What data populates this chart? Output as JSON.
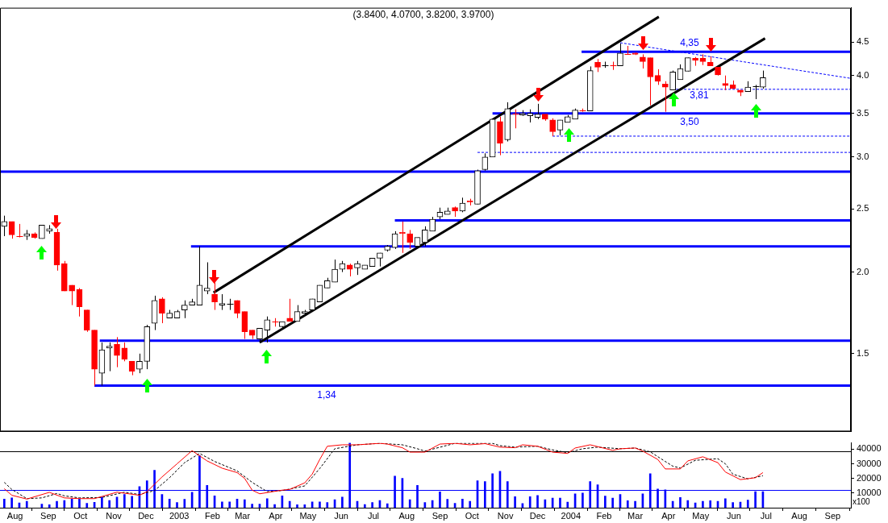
{
  "chart_data": [
    {
      "type": "candlestick",
      "title": "(3.8400, 4.0700, 3.8200, 3.9700)",
      "xlim": [
        "2002-07-18",
        "2004-09-18"
      ],
      "ylim": [
        1.14,
        5.08
      ],
      "log": "y",
      "yticks": [
        1.5,
        {
          "value": 2,
          "label": "2.0"
        },
        2.5,
        {
          "value": 3,
          "label": "3.0"
        },
        3.5,
        {
          "value": 4,
          "label": "4.0"
        },
        4.5
      ],
      "tick_labels": "y",
      "series": [
        {
          "type": "candlestick",
          "x": [
            "2002-07-22",
            "2002-07-29",
            "2002-08-05",
            "2002-08-12",
            "2002-08-19",
            "2002-08-26",
            "2002-09-02",
            "2002-09-09",
            "2002-09-16",
            "2002-09-23",
            "2002-09-30",
            "2002-10-07",
            "2002-10-14",
            "2002-10-21",
            "2002-10-28",
            "2002-11-04",
            "2002-11-11",
            "2002-11-18",
            "2002-11-25",
            "2002-12-02",
            "2002-12-09",
            "2002-12-16",
            "2002-12-23",
            "2002-12-30",
            "2003-01-06",
            "2003-01-13",
            "2003-01-20",
            "2003-01-27",
            "2003-02-03",
            "2003-02-10",
            "2003-02-17",
            "2003-02-24",
            "2003-03-03",
            "2003-03-10",
            "2003-03-17",
            "2003-03-24",
            "2003-03-31",
            "2003-04-07",
            "2003-04-14",
            "2003-04-21",
            "2003-04-28",
            "2003-05-05",
            "2003-05-12",
            "2003-05-19",
            "2003-05-26",
            "2003-06-02",
            "2003-06-09",
            "2003-06-16",
            "2003-06-23",
            "2003-06-30",
            "2003-07-07",
            "2003-07-14",
            "2003-07-21",
            "2003-07-28",
            "2003-08-04",
            "2003-08-11",
            "2003-08-18",
            "2003-08-25",
            "2003-09-01",
            "2003-09-08",
            "2003-09-15",
            "2003-09-22",
            "2003-09-29",
            "2003-10-06",
            "2003-10-13",
            "2003-10-20",
            "2003-10-27",
            "2003-11-03",
            "2003-11-10",
            "2003-11-17",
            "2003-11-24",
            "2003-12-01",
            "2003-12-08",
            "2003-12-15",
            "2003-12-22",
            "2003-12-29",
            "2004-01-05",
            "2004-01-12",
            "2004-01-19",
            "2004-01-26",
            "2004-02-02",
            "2004-02-09",
            "2004-02-16",
            "2004-02-23",
            "2004-03-01",
            "2004-03-08",
            "2004-03-15",
            "2004-03-22",
            "2004-03-29",
            "2004-04-05",
            "2004-04-12",
            "2004-04-19",
            "2004-04-26",
            "2004-05-03",
            "2004-05-10",
            "2004-05-17",
            "2004-05-24",
            "2004-05-31",
            "2004-06-07",
            "2004-06-14",
            "2004-06-21",
            "2004-06-28"
          ],
          "ohlc": [
            [
              2.35,
              2.44,
              2.27,
              2.39
            ],
            [
              2.39,
              2.39,
              2.25,
              2.28
            ],
            [
              2.27,
              2.37,
              2.26,
              2.27
            ],
            [
              2.27,
              2.32,
              2.24,
              2.29
            ],
            [
              2.29,
              2.3,
              2.25,
              2.26
            ],
            [
              2.25,
              2.36,
              2.25,
              2.36
            ],
            [
              2.31,
              2.36,
              2.29,
              2.33
            ],
            [
              2.3,
              2.33,
              2.01,
              2.05
            ],
            [
              2.06,
              2.08,
              1.87,
              1.87
            ],
            [
              1.91,
              1.91,
              1.78,
              1.87
            ],
            [
              1.88,
              1.89,
              1.71,
              1.77
            ],
            [
              1.75,
              1.75,
              1.62,
              1.63
            ],
            [
              1.63,
              1.63,
              1.34,
              1.42
            ],
            [
              1.4,
              1.56,
              1.34,
              1.52
            ],
            [
              1.53,
              1.56,
              1.41,
              1.54
            ],
            [
              1.55,
              1.59,
              1.43,
              1.49
            ],
            [
              1.53,
              1.56,
              1.46,
              1.47
            ],
            [
              1.46,
              1.46,
              1.39,
              1.41
            ],
            [
              1.42,
              1.5,
              1.4,
              1.46
            ],
            [
              1.46,
              1.66,
              1.42,
              1.65
            ],
            [
              1.67,
              1.84,
              1.63,
              1.81
            ],
            [
              1.82,
              1.83,
              1.67,
              1.73
            ],
            [
              1.7,
              1.75,
              1.7,
              1.73
            ],
            [
              1.7,
              1.75,
              1.7,
              1.74
            ],
            [
              1.75,
              1.81,
              1.7,
              1.78
            ],
            [
              1.78,
              1.82,
              1.78,
              1.8
            ],
            [
              1.78,
              2.19,
              1.78,
              1.91
            ],
            [
              1.87,
              2.07,
              1.85,
              1.89
            ],
            [
              1.85,
              1.93,
              1.75,
              1.8
            ],
            [
              1.78,
              1.85,
              1.75,
              1.79
            ],
            [
              1.79,
              1.82,
              1.75,
              1.79
            ],
            [
              1.81,
              1.81,
              1.7,
              1.73
            ],
            [
              1.74,
              1.74,
              1.58,
              1.62
            ],
            [
              1.63,
              1.63,
              1.58,
              1.6
            ],
            [
              1.58,
              1.64,
              1.56,
              1.64
            ],
            [
              1.63,
              1.71,
              1.56,
              1.69
            ],
            [
              1.68,
              1.7,
              1.65,
              1.68
            ],
            [
              1.65,
              1.68,
              1.64,
              1.68
            ],
            [
              1.7,
              1.82,
              1.68,
              1.68
            ],
            [
              1.68,
              1.78,
              1.68,
              1.74
            ],
            [
              1.73,
              1.75,
              1.72,
              1.74
            ],
            [
              1.75,
              1.82,
              1.75,
              1.82
            ],
            [
              1.8,
              1.91,
              1.8,
              1.91
            ],
            [
              1.89,
              1.96,
              1.89,
              1.94
            ],
            [
              1.93,
              2.09,
              1.93,
              2.02
            ],
            [
              2.02,
              2.08,
              2,
              2.06
            ],
            [
              2.05,
              2.06,
              1.97,
              2.02
            ],
            [
              2.03,
              2.08,
              1.98,
              2.06
            ],
            [
              2.02,
              2.05,
              2.02,
              2.05
            ],
            [
              2.04,
              2.1,
              2.04,
              2.1
            ],
            [
              2.1,
              2.14,
              2.04,
              2.14
            ],
            [
              2.16,
              2.2,
              2.15,
              2.19
            ],
            [
              2.18,
              2.31,
              2.17,
              2.29
            ],
            [
              2.3,
              2.39,
              2.14,
              2.29
            ],
            [
              2.29,
              2.32,
              2.17,
              2.22
            ],
            [
              2.19,
              2.26,
              2.19,
              2.26
            ],
            [
              2.22,
              2.35,
              2.19,
              2.32
            ],
            [
              2.31,
              2.43,
              2.31,
              2.41
            ],
            [
              2.43,
              2.51,
              2.41,
              2.47
            ],
            [
              2.45,
              2.51,
              2.45,
              2.48
            ],
            [
              2.51,
              2.52,
              2.43,
              2.48
            ],
            [
              2.48,
              2.6,
              2.47,
              2.55
            ],
            [
              2.57,
              2.59,
              2.53,
              2.56
            ],
            [
              2.54,
              2.87,
              2.54,
              2.86
            ],
            [
              2.87,
              3.04,
              2.86,
              3
            ],
            [
              3,
              3.43,
              3,
              3.43
            ],
            [
              3.4,
              3.46,
              3.02,
              3.15
            ],
            [
              3.19,
              3.64,
              3.17,
              3.56
            ],
            [
              3.5,
              3.55,
              3.32,
              3.5
            ],
            [
              3.48,
              3.54,
              3.47,
              3.5
            ],
            [
              3.47,
              3.55,
              3.39,
              3.5
            ],
            [
              3.45,
              3.62,
              3.43,
              3.49
            ],
            [
              3.49,
              3.49,
              3.41,
              3.43
            ],
            [
              3.42,
              3.44,
              3.23,
              3.28
            ],
            [
              3.3,
              3.42,
              3.24,
              3.42
            ],
            [
              3.39,
              3.48,
              3.39,
              3.46
            ],
            [
              3.43,
              3.56,
              3.43,
              3.54
            ],
            [
              3.54,
              3.56,
              3.52,
              3.54
            ],
            [
              3.53,
              4.13,
              3.53,
              4.07
            ],
            [
              4.19,
              4.24,
              4.05,
              4.12
            ],
            [
              4.15,
              4.2,
              4.11,
              4.15
            ],
            [
              4.15,
              4.2,
              4.08,
              4.15
            ],
            [
              4.14,
              4.48,
              4.14,
              4.33
            ],
            [
              4.31,
              4.44,
              4.31,
              4.31
            ],
            [
              4.33,
              4.34,
              4.3,
              4.31
            ],
            [
              4.27,
              4.31,
              4.1,
              4.2
            ],
            [
              4.26,
              4.26,
              3.6,
              3.98
            ],
            [
              4,
              4.09,
              3.87,
              3.92
            ],
            [
              3.88,
              3.92,
              3.52,
              3.84
            ],
            [
              3.8,
              4.07,
              3.8,
              4.05
            ],
            [
              3.94,
              4.16,
              3.94,
              4.1
            ],
            [
              4.06,
              4.26,
              4.06,
              4.26
            ],
            [
              4.25,
              4.27,
              4.14,
              4.22
            ],
            [
              4.25,
              4.31,
              4.15,
              4.2
            ],
            [
              4.19,
              4.28,
              4.14,
              4.14
            ],
            [
              4.12,
              4.12,
              4,
              4.01
            ],
            [
              3.89,
              4,
              3.8,
              3.86
            ],
            [
              3.87,
              3.93,
              3.82,
              3.82
            ],
            [
              3.8,
              3.8,
              3.72,
              3.77
            ],
            [
              3.78,
              3.92,
              3.78,
              3.84
            ],
            [
              3.85,
              3.87,
              3.68,
              3.85
            ],
            [
              3.84,
              4.07,
              3.82,
              3.97
            ]
          ],
          "colors": [
            "#000000",
            "#ff0000",
            "#ff0000",
            "#000000",
            "#ff0000",
            "#000000",
            "#000000",
            "#ff0000",
            "#ff0000",
            "#ff0000",
            "#ff0000",
            "#ff0000",
            "#ff0000",
            "#000000",
            "#000000",
            "#ff0000",
            "#ff0000",
            "#ff0000",
            "#000000",
            "#000000",
            "#000000",
            "#ff0000",
            "#000000",
            "#000000",
            "#000000",
            "#000000",
            "#000000",
            "#000000",
            "#ff0000",
            "#000000",
            "#000000",
            "#ff0000",
            "#ff0000",
            "#ff0000",
            "#000000",
            "#000000",
            "#ff0000",
            "#000000",
            "#ff0000",
            "#000000",
            "#000000",
            "#000000",
            "#000000",
            "#000000",
            "#000000",
            "#000000",
            "#ff0000",
            "#000000",
            "#000000",
            "#000000",
            "#000000",
            "#000000",
            "#000000",
            "#ff0000",
            "#ff0000",
            "#000000",
            "#000000",
            "#000000",
            "#000000",
            "#000000",
            "#ff0000",
            "#000000",
            "#ff0000",
            "#000000",
            "#000000",
            "#000000",
            "#ff0000",
            "#000000",
            "#ff0000",
            "#000000",
            "#000000",
            "#000000",
            "#ff0000",
            "#ff0000",
            "#000000",
            "#000000",
            "#000000",
            "#ff0000",
            "#000000",
            "#ff0000",
            "#000000",
            "#ff0000",
            "#000000",
            "#ff0000",
            "#ff0000",
            "#ff0000",
            "#ff0000",
            "#ff0000",
            "#ff0000",
            "#000000",
            "#000000",
            "#000000",
            "#ff0000",
            "#ff0000",
            "#ff0000",
            "#ff0000",
            "#ff0000",
            "#ff0000",
            "#ff0000",
            "#000000",
            "#000000",
            "#000000"
          ]
        },
        {
          "type": "line",
          "color": "#000000",
          "x": [
            "2003-02-02",
            "2004-03-23"
          ],
          "values": [
            1.86,
            4.92
          ]
        },
        {
          "type": "line",
          "color": "#000000",
          "x": [
            "2003-03-17",
            "2004-06-30"
          ],
          "values": [
            1.56,
            4.56
          ]
        },
        {
          "type": "line",
          "color": "#0000ff",
          "line_style": "dashed",
          "x": [
            "2004-02-16",
            "2004-09-18"
          ],
          "values": [
            4.49,
            3.96
          ]
        },
        {
          "type": "line",
          "color": "#0000ff",
          "x": [
            "2002-10-14",
            "2004-09-18"
          ],
          "values": [
            1.34,
            1.34
          ],
          "name": "1,34"
        },
        {
          "type": "line",
          "color": "#0000ff",
          "x": [
            "2002-10-19",
            "2004-09-18"
          ],
          "values": [
            1.57,
            1.57
          ]
        },
        {
          "type": "line",
          "color": "#0000ff",
          "x": [
            "2003-01-12",
            "2004-09-18"
          ],
          "values": [
            2.19,
            2.19
          ]
        },
        {
          "type": "line",
          "color": "#0000ff",
          "x": [
            "2003-07-21",
            "2004-09-18"
          ],
          "values": [
            2.4,
            2.4
          ]
        },
        {
          "type": "line",
          "color": "#0000ff",
          "x": [
            "2002-07-18",
            "2004-09-18"
          ],
          "values": [
            2.85,
            2.85
          ]
        },
        {
          "type": "line",
          "color": "#0000ff",
          "line_style": "dashed",
          "x": [
            "2003-10-06",
            "2004-09-18"
          ],
          "values": [
            3.05,
            3.05
          ]
        },
        {
          "type": "line",
          "color": "#0000ff",
          "line_style": "dashed",
          "x": [
            "2003-12-15",
            "2004-09-18"
          ],
          "values": [
            3.23,
            3.23
          ]
        },
        {
          "type": "line",
          "color": "#0000ff",
          "x": [
            "2003-10-20",
            "2004-09-18"
          ],
          "values": [
            3.5,
            3.5
          ],
          "name": "3,50"
        },
        {
          "type": "line",
          "color": "#0000ff",
          "line_style": "dashed",
          "x": [
            "2004-04-08",
            "2004-09-18"
          ],
          "values": [
            3.81,
            3.81
          ],
          "name": "3,81"
        },
        {
          "type": "line",
          "color": "#0000ff",
          "x": [
            "2004-01-11",
            "2004-09-18"
          ],
          "values": [
            4.35,
            4.35
          ],
          "name": "4,35"
        }
      ]
    },
    {
      "type": "bar",
      "xlim": [
        "2002-07-18",
        "2004-09-18"
      ],
      "ylim": [
        0,
        44300
      ],
      "yticks": [
        10000,
        20000,
        30000,
        40000
      ],
      "xticks": [
        {
          "value": "2002-08-01",
          "label": "Aug"
        },
        {
          "value": "2002-09-01",
          "label": "Sep"
        },
        {
          "value": "2002-10-01",
          "label": "Oct"
        },
        {
          "value": "2002-11-01",
          "label": "Nov"
        },
        {
          "value": "2002-12-01",
          "label": "Dec"
        },
        {
          "value": "2003-01-01",
          "label": "2003"
        },
        {
          "value": "2003-02-01",
          "label": "Feb"
        },
        {
          "value": "2003-03-01",
          "label": "Mar"
        },
        {
          "value": "2003-04-01",
          "label": "Apr"
        },
        {
          "value": "2003-05-01",
          "label": "May"
        },
        {
          "value": "2003-06-01",
          "label": "Jun"
        },
        {
          "value": "2003-07-01",
          "label": "Jul"
        },
        {
          "value": "2003-08-01",
          "label": "Aug"
        },
        {
          "value": "2003-09-01",
          "label": "Sep"
        },
        {
          "value": "2003-10-01",
          "label": "Oct"
        },
        {
          "value": "2003-11-01",
          "label": "Nov"
        },
        {
          "value": "2003-12-01",
          "label": "Dec"
        },
        {
          "value": "2004-01-01",
          "label": "2004"
        },
        {
          "value": "2004-02-01",
          "label": "Feb"
        },
        {
          "value": "2004-03-01",
          "label": "Mar"
        },
        {
          "value": "2004-04-01",
          "label": "Apr"
        },
        {
          "value": "2004-05-01",
          "label": "May"
        },
        {
          "value": "2004-06-01",
          "label": "Jun"
        },
        {
          "value": "2004-07-01",
          "label": "Jul"
        },
        {
          "value": "2004-08-01",
          "label": "Aug"
        },
        {
          "value": "2004-09-01",
          "label": "Sep"
        }
      ],
      "annotations": [
        "x100"
      ],
      "ref_lines": [
        {
          "axis": "y",
          "value": 38600,
          "color": "#000000"
        },
        {
          "axis": "y",
          "value": 12200,
          "color": "#0000ff"
        }
      ],
      "series": [
        {
          "type": "bar",
          "color": "#0000ff",
          "x": [
            "2002-07-22",
            "2002-07-29",
            "2002-08-05",
            "2002-08-12",
            "2002-08-19",
            "2002-08-26",
            "2002-09-02",
            "2002-09-09",
            "2002-09-16",
            "2002-09-23",
            "2002-09-30",
            "2002-10-07",
            "2002-10-14",
            "2002-10-21",
            "2002-10-28",
            "2002-11-04",
            "2002-11-11",
            "2002-11-18",
            "2002-11-25",
            "2002-12-02",
            "2002-12-09",
            "2002-12-16",
            "2002-12-23",
            "2002-12-30",
            "2003-01-06",
            "2003-01-13",
            "2003-01-20",
            "2003-01-27",
            "2003-02-03",
            "2003-02-10",
            "2003-02-17",
            "2003-02-24",
            "2003-03-03",
            "2003-03-10",
            "2003-03-17",
            "2003-03-24",
            "2003-03-31",
            "2003-04-07",
            "2003-04-14",
            "2003-04-21",
            "2003-04-28",
            "2003-05-05",
            "2003-05-12",
            "2003-05-19",
            "2003-05-26",
            "2003-06-02",
            "2003-06-09",
            "2003-06-16",
            "2003-06-23",
            "2003-06-30",
            "2003-07-07",
            "2003-07-14",
            "2003-07-21",
            "2003-07-28",
            "2003-08-04",
            "2003-08-11",
            "2003-08-18",
            "2003-08-25",
            "2003-09-01",
            "2003-09-08",
            "2003-09-15",
            "2003-09-22",
            "2003-09-29",
            "2003-10-06",
            "2003-10-13",
            "2003-10-20",
            "2003-10-27",
            "2003-11-03",
            "2003-11-10",
            "2003-11-17",
            "2003-11-24",
            "2003-12-01",
            "2003-12-08",
            "2003-12-15",
            "2003-12-22",
            "2003-12-29",
            "2004-01-05",
            "2004-01-12",
            "2004-01-19",
            "2004-01-26",
            "2004-02-02",
            "2004-02-09",
            "2004-02-16",
            "2004-02-23",
            "2004-03-01",
            "2004-03-08",
            "2004-03-15",
            "2004-03-22",
            "2004-03-29",
            "2004-04-05",
            "2004-04-12",
            "2004-04-19",
            "2004-04-26",
            "2004-05-03",
            "2004-05-10",
            "2004-05-17",
            "2004-05-24",
            "2004-05-31",
            "2004-06-07",
            "2004-06-14",
            "2004-06-21",
            "2004-06-28"
          ],
          "values": [
            5900,
            6700,
            3300,
            4300,
            null,
            2500,
            2000,
            4400,
            4900,
            5900,
            5900,
            3000,
            3700,
            7300,
            4900,
            7300,
            9000,
            7800,
            14400,
            18400,
            25600,
            9000,
            5900,
            3500,
            5700,
            10500,
            35600,
            15200,
            8100,
            4000,
            4000,
            5900,
            5400,
            2500,
            2500,
            6200,
            2200,
            8100,
            4400,
            2000,
            2000,
            4000,
            4000,
            3500,
            5400,
            7300,
            44300,
            4400,
            2200,
            3500,
            4900,
            2700,
            21600,
            20000,
            5400,
            15200,
            3500,
            4900,
            10800,
            5700,
            3000,
            5900,
            4400,
            18400,
            17800,
            23200,
            24900,
            17800,
            7500,
            2900,
            7500,
            8400,
            5400,
            6500,
            6500,
            3800,
            9400,
            10000,
            17900,
            15600,
            8000,
            6500,
            9000,
            4800,
            4400,
            9500,
            23200,
            12700,
            12200,
            4400,
            7000,
            4900,
            3300,
            4300,
            4800,
            4400,
            6200,
            3500,
            3800,
            5200,
            11000,
            11000
          ]
        },
        {
          "type": "line",
          "color": "#ff0000",
          "x": [
            "2002-07-22",
            "2002-07-29",
            "2002-08-12",
            "2002-09-02",
            "2002-09-16",
            "2002-09-30",
            "2002-10-14",
            "2002-11-04",
            "2002-11-25",
            "2002-12-02",
            "2002-12-16",
            "2002-12-30",
            "2003-01-13",
            "2003-01-27",
            "2003-02-10",
            "2003-02-24",
            "2003-03-03",
            "2003-03-10",
            "2003-03-17",
            "2003-04-07",
            "2003-04-14",
            "2003-04-28",
            "2003-05-05",
            "2003-05-12",
            "2003-05-19",
            "2003-06-02",
            "2003-06-16",
            "2003-07-07",
            "2003-07-14",
            "2003-07-28",
            "2003-08-04",
            "2003-08-18",
            "2003-09-01",
            "2003-09-15",
            "2003-09-29",
            "2003-10-13",
            "2003-10-27",
            "2003-11-10",
            "2003-11-17",
            "2003-12-01",
            "2003-12-15",
            "2003-12-29",
            "2004-01-05",
            "2004-01-19",
            "2004-02-09",
            "2004-02-16",
            "2004-03-01",
            "2004-03-08",
            "2004-03-22",
            "2004-03-29",
            "2004-04-12",
            "2004-04-19",
            "2004-05-03",
            "2004-05-17",
            "2004-05-24",
            "2004-06-07",
            "2004-06-21",
            "2004-06-28"
          ],
          "values": [
            13000,
            8500,
            5900,
            10500,
            6700,
            6200,
            6200,
            10600,
            8500,
            11000,
            21000,
            30000,
            39000,
            32000,
            27000,
            24000,
            20000,
            12000,
            9500,
            12000,
            12500,
            17000,
            23000,
            33000,
            42000,
            43000,
            43000,
            44000,
            43500,
            41000,
            38000,
            38000,
            43500,
            44000,
            43000,
            43800,
            41400,
            41000,
            43000,
            42000,
            38000,
            37100,
            40800,
            43000,
            39200,
            40300,
            40800,
            38700,
            33000,
            26500,
            26500,
            32000,
            34800,
            30800,
            24400,
            19200,
            20500,
            24000
          ]
        },
        {
          "type": "line",
          "color": "#000000",
          "line_style": "dashed",
          "x": [
            "2002-07-22",
            "2002-07-29",
            "2002-08-12",
            "2002-08-26",
            "2002-09-09",
            "2002-09-16",
            "2002-09-30",
            "2002-10-21",
            "2002-11-11",
            "2002-11-25",
            "2002-12-09",
            "2002-12-23",
            "2003-01-06",
            "2003-01-20",
            "2003-02-03",
            "2003-02-24",
            "2003-03-10",
            "2003-03-24",
            "2003-04-07",
            "2003-04-28",
            "2003-05-12",
            "2003-05-26",
            "2003-06-16",
            "2003-07-07",
            "2003-07-28",
            "2003-08-11",
            "2003-08-18",
            "2003-09-15",
            "2003-10-20",
            "2003-10-27",
            "2003-11-10",
            "2003-12-01",
            "2003-12-15",
            "2003-12-29",
            "2004-01-12",
            "2004-01-26",
            "2004-02-16",
            "2004-03-01",
            "2004-03-15",
            "2004-03-29",
            "2004-04-05",
            "2004-04-12",
            "2004-04-26",
            "2004-05-17",
            "2004-05-24",
            "2004-05-31",
            "2004-06-14",
            "2004-06-28"
          ],
          "values": [
            17300,
            12500,
            6200,
            6700,
            9700,
            8100,
            6700,
            7000,
            10600,
            9000,
            11700,
            20500,
            30800,
            37100,
            31600,
            25200,
            17300,
            11000,
            11700,
            14900,
            26800,
            40300,
            43000,
            44000,
            43000,
            40300,
            38700,
            44000,
            44000,
            42400,
            41400,
            42000,
            39500,
            37600,
            40300,
            41400,
            40300,
            40800,
            38200,
            31600,
            28400,
            27100,
            32400,
            33500,
            30000,
            22900,
            19700,
            21800
          ]
        }
      ]
    }
  ]
}
